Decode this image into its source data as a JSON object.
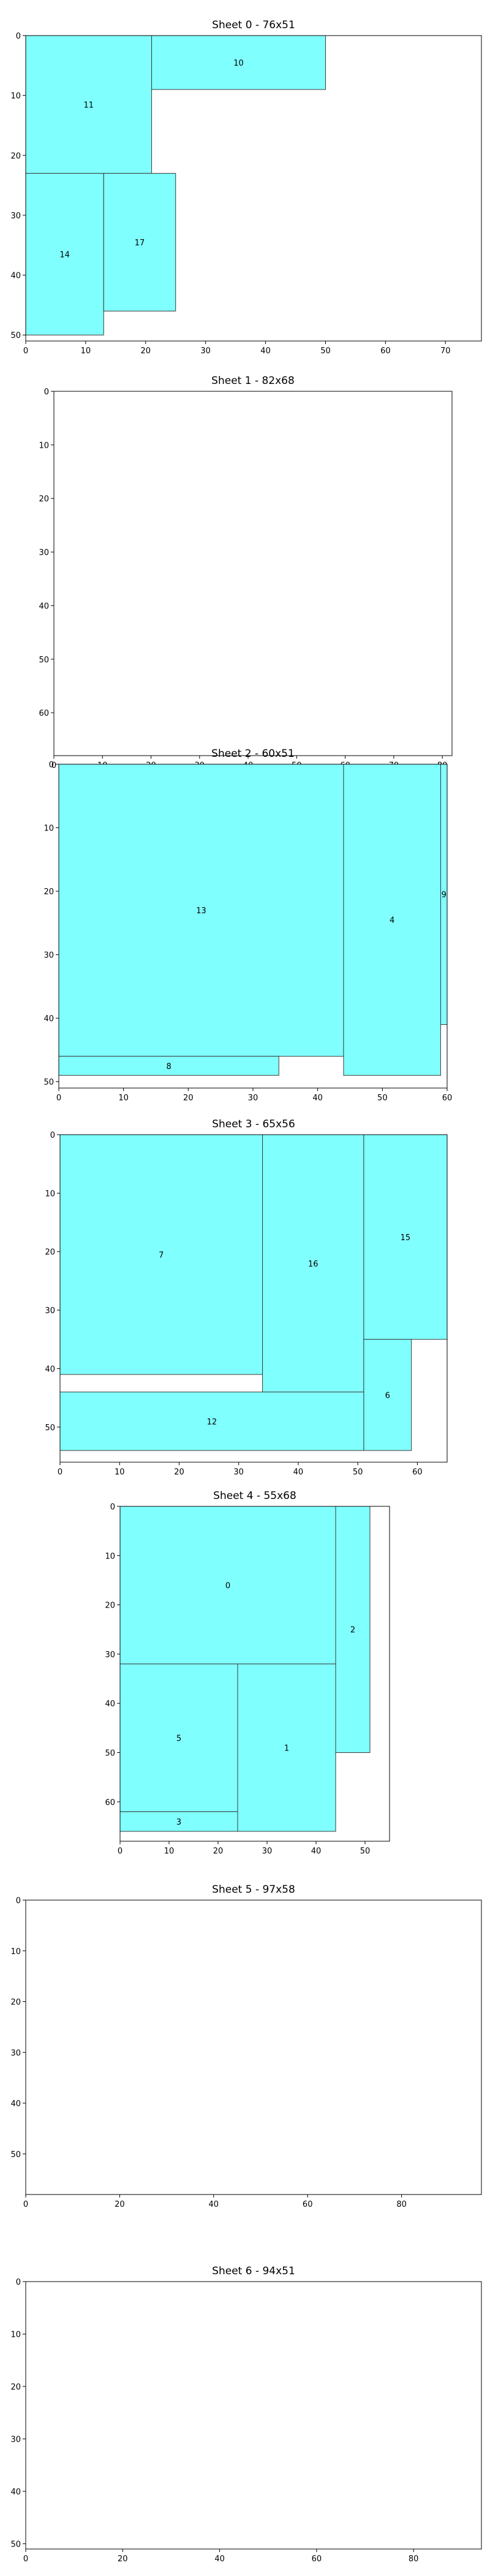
{
  "chart_data": [
    {
      "type": "bar",
      "title": "Sheet 0 - 76x51",
      "xlim": [
        0,
        76
      ],
      "ylim": [
        0,
        51
      ],
      "y_inverted": true,
      "xticks": [
        0,
        10,
        20,
        30,
        40,
        50,
        60,
        70
      ],
      "yticks": [
        0,
        10,
        20,
        30,
        40,
        50
      ],
      "pieces": [
        {
          "id": "11",
          "x": 0,
          "y": 0,
          "w": 21,
          "h": 23
        },
        {
          "id": "10",
          "x": 21,
          "y": 0,
          "w": 29,
          "h": 9
        },
        {
          "id": "14",
          "x": 0,
          "y": 23,
          "w": 13,
          "h": 27
        },
        {
          "id": "17",
          "x": 13,
          "y": 23,
          "w": 12,
          "h": 23
        }
      ]
    },
    {
      "type": "bar",
      "title": "Sheet 1 - 82x68",
      "xlim": [
        0,
        82
      ],
      "ylim": [
        0,
        68
      ],
      "y_inverted": true,
      "xticks": [
        0,
        10,
        20,
        30,
        40,
        50,
        60,
        70,
        80
      ],
      "yticks": [
        0,
        10,
        20,
        30,
        40,
        50,
        60
      ],
      "pieces": []
    },
    {
      "type": "bar",
      "title": "Sheet 2 - 60x51",
      "xlim": [
        0,
        60
      ],
      "ylim": [
        0,
        51
      ],
      "y_inverted": true,
      "xticks": [
        0,
        10,
        20,
        30,
        40,
        50,
        60
      ],
      "yticks": [
        0,
        10,
        20,
        30,
        40,
        50
      ],
      "pieces": [
        {
          "id": "13",
          "x": 0,
          "y": 0,
          "w": 44,
          "h": 46
        },
        {
          "id": "4",
          "x": 44,
          "y": 0,
          "w": 15,
          "h": 49
        },
        {
          "id": "9",
          "x": 59,
          "y": 0,
          "w": 1,
          "h": 41
        },
        {
          "id": "8",
          "x": 0,
          "y": 46,
          "w": 34,
          "h": 3
        }
      ]
    },
    {
      "type": "bar",
      "title": "Sheet 3 - 65x56",
      "xlim": [
        0,
        65
      ],
      "ylim": [
        0,
        56
      ],
      "y_inverted": true,
      "xticks": [
        0,
        10,
        20,
        30,
        40,
        50,
        60
      ],
      "yticks": [
        0,
        10,
        20,
        30,
        40,
        50
      ],
      "pieces": [
        {
          "id": "7",
          "x": 0,
          "y": 0,
          "w": 34,
          "h": 41
        },
        {
          "id": "16",
          "x": 34,
          "y": 0,
          "w": 17,
          "h": 44
        },
        {
          "id": "15",
          "x": 51,
          "y": 0,
          "w": 14,
          "h": 35
        },
        {
          "id": "6",
          "x": 51,
          "y": 35,
          "w": 8,
          "h": 19
        },
        {
          "id": "12",
          "x": 0,
          "y": 44,
          "w": 51,
          "h": 10
        }
      ]
    },
    {
      "type": "bar",
      "title": "Sheet 4 - 55x68",
      "xlim": [
        0,
        55
      ],
      "ylim": [
        0,
        68
      ],
      "y_inverted": true,
      "xticks": [
        0,
        10,
        20,
        30,
        40,
        50
      ],
      "yticks": [
        0,
        10,
        20,
        30,
        40,
        50,
        60
      ],
      "pieces": [
        {
          "id": "0",
          "x": 0,
          "y": 0,
          "w": 44,
          "h": 32
        },
        {
          "id": "2",
          "x": 44,
          "y": 0,
          "w": 7,
          "h": 50
        },
        {
          "id": "5",
          "x": 0,
          "y": 32,
          "w": 24,
          "h": 30
        },
        {
          "id": "1",
          "x": 24,
          "y": 32,
          "w": 20,
          "h": 34
        },
        {
          "id": "3",
          "x": 0,
          "y": 62,
          "w": 24,
          "h": 4
        }
      ]
    },
    {
      "type": "bar",
      "title": "Sheet 5 - 97x58",
      "xlim": [
        0,
        97
      ],
      "ylim": [
        0,
        58
      ],
      "y_inverted": true,
      "xticks": [
        0,
        20,
        40,
        60,
        80
      ],
      "yticks": [
        0,
        10,
        20,
        30,
        40,
        50
      ],
      "pieces": []
    },
    {
      "type": "bar",
      "title": "Sheet 6 - 94x51",
      "xlim": [
        0,
        94
      ],
      "ylim": [
        0,
        51
      ],
      "y_inverted": true,
      "xticks": [
        0,
        20,
        40,
        60,
        80
      ],
      "yticks": [
        0,
        10,
        20,
        30,
        40,
        50
      ],
      "pieces": []
    }
  ],
  "colors": {
    "piece_fill": "#80ffff",
    "piece_stroke": "#3a3a3a",
    "frame": "#000000"
  }
}
